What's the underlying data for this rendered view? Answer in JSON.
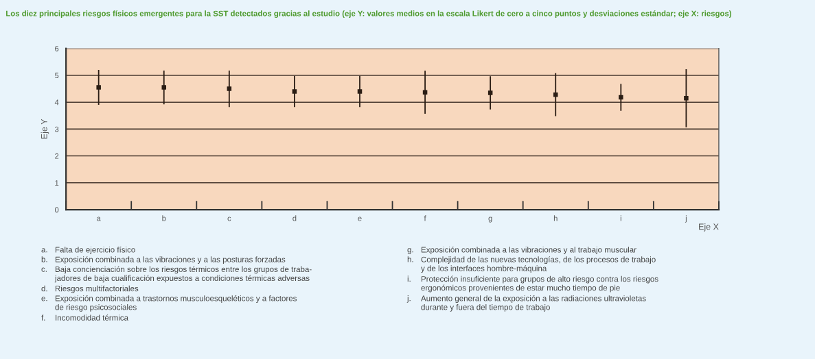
{
  "chart_data": {
    "type": "scatter",
    "title": "Los diez principales riesgos físicos emergentes para la SST detectados gracias al estudio (eje Y: valores medios en la escala Likert de cero a cinco puntos y desviaciones estándar; eje X: riesgos)",
    "xlabel": "Eje X",
    "ylabel": "Eje Y",
    "categories": [
      "a",
      "b",
      "c",
      "d",
      "e",
      "f",
      "g",
      "h",
      "i",
      "j"
    ],
    "values": [
      4.55,
      4.55,
      4.5,
      4.4,
      4.4,
      4.37,
      4.35,
      4.28,
      4.18,
      4.15
    ],
    "errors": [
      0.65,
      0.63,
      0.68,
      0.58,
      0.58,
      0.8,
      0.62,
      0.8,
      0.5,
      1.08
    ],
    "color": "#2b1d14",
    "marker": "square",
    "ylim": [
      0,
      6
    ],
    "yticks": [
      0,
      1,
      2,
      3,
      4,
      5,
      6
    ],
    "grid": "y",
    "annotations": [
      "a. Falta de ejercicio físico",
      "b. Exposición combinada a las vibraciones y a las posturas forzadas",
      "c. Baja concienciación sobre los riesgos térmicos entre los grupos de traba-\njadores de baja cualificación expuestos a condiciones térmicas adversas",
      "d. Riesgos multifactoriales",
      "e. Exposición combinada a trastornos musculoesqueléticos y a factores\nde riesgo psicosociales",
      "f. Incomodidad térmica",
      "g. Exposición combinada a las vibraciones y al trabajo muscular",
      "h. Complejidad de las nuevas tecnologías, de los procesos de trabajo\ny de los interfaces hombre-máquina",
      "i. Protección insuficiente para grupos de alto riesgo contra los riesgos\nergonómicos provenientes de estar mucho tiempo de pie",
      "j. Aumento general de la exposición a las radiaciones ultravioletas\ndurante y fuera del tiempo de trabajo"
    ]
  }
}
